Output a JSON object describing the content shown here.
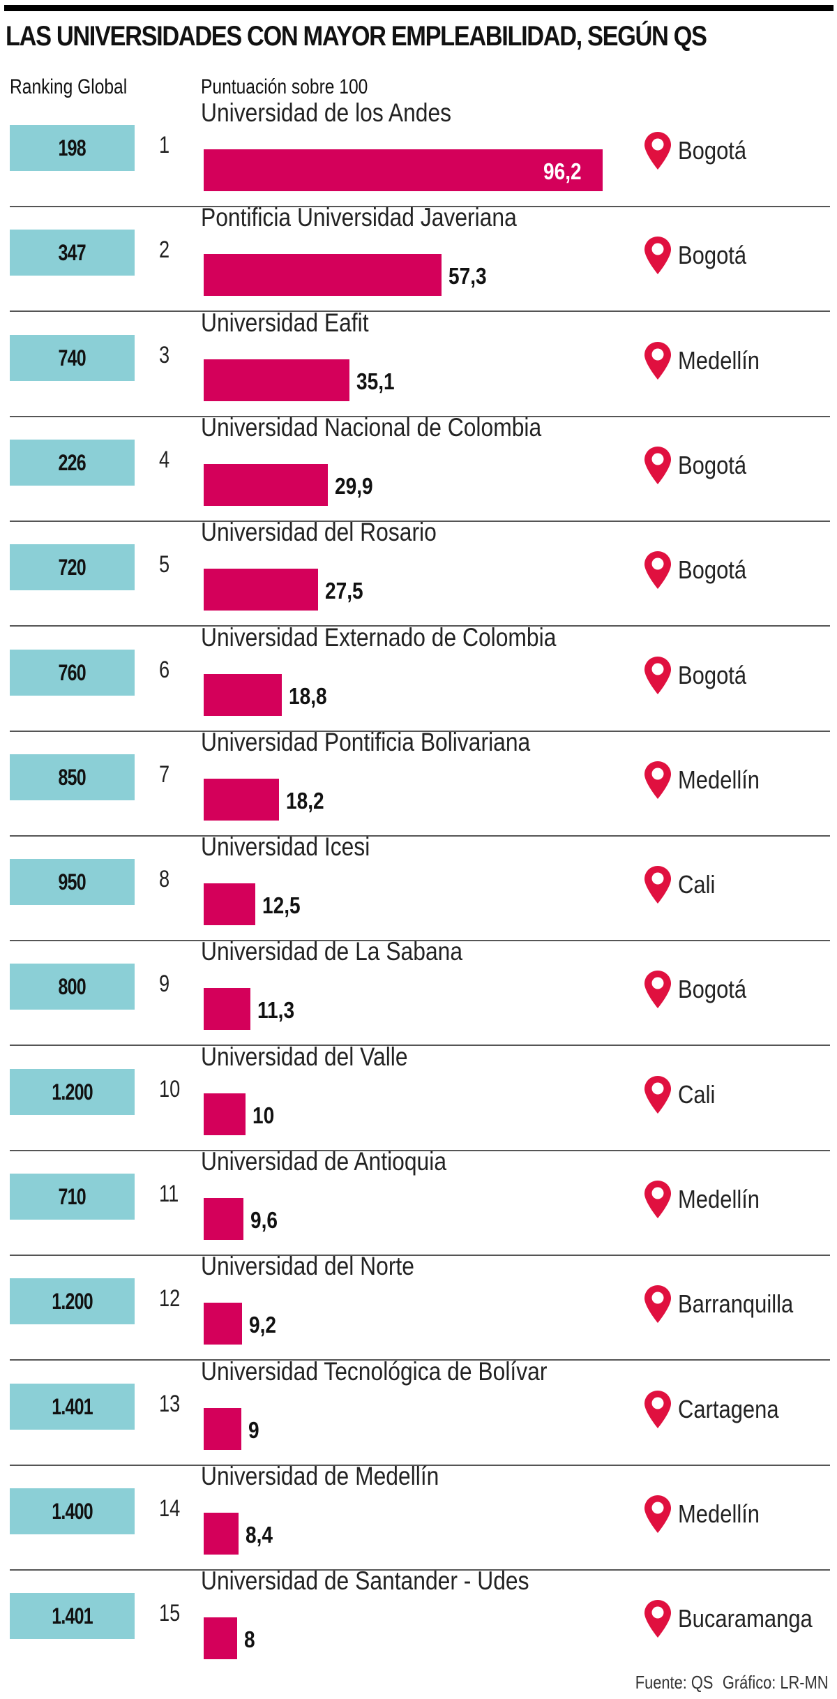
{
  "title": "LAS UNIVERSIDADES CON MAYOR EMPLEABILIDAD, SEGÚN QS",
  "headers": {
    "ranking": "Ranking Global",
    "score": "Puntuación sobre 100"
  },
  "colors": {
    "ranking_box": "#8bcfd6",
    "bar": "#d4005a",
    "pin": "#e0103f",
    "topbar": "#000000"
  },
  "icons": {
    "location": "map-pin-icon"
  },
  "rows": [
    {
      "global": "198",
      "pos": "1",
      "name": "Universidad de los Andes",
      "score": "96,2",
      "value": 96.2,
      "city": "Bogotá"
    },
    {
      "global": "347",
      "pos": "2",
      "name": "Pontificia Universidad Javeriana",
      "score": "57,3",
      "value": 57.3,
      "city": "Bogotá"
    },
    {
      "global": "740",
      "pos": "3",
      "name": "Universidad Eafit",
      "score": "35,1",
      "value": 35.1,
      "city": "Medellín"
    },
    {
      "global": "226",
      "pos": "4",
      "name": "Universidad Nacional de Colombia",
      "score": "29,9",
      "value": 29.9,
      "city": "Bogotá"
    },
    {
      "global": "720",
      "pos": "5",
      "name": "Universidad del Rosario",
      "score": "27,5",
      "value": 27.5,
      "city": "Bogotá"
    },
    {
      "global": "760",
      "pos": "6",
      "name": "Universidad Externado de Colombia",
      "score": "18,8",
      "value": 18.8,
      "city": "Bogotá"
    },
    {
      "global": "850",
      "pos": "7",
      "name": "Universidad Pontificia Bolivariana",
      "score": "18,2",
      "value": 18.2,
      "city": "Medellín"
    },
    {
      "global": "950",
      "pos": "8",
      "name": "Universidad Icesi",
      "score": "12,5",
      "value": 12.5,
      "city": "Cali"
    },
    {
      "global": "800",
      "pos": "9",
      "name": "Universidad de La Sabana",
      "score": "11,3",
      "value": 11.3,
      "city": "Bogotá"
    },
    {
      "global": "1.200",
      "pos": "10",
      "name": "Universidad del Valle",
      "score": "10",
      "value": 10,
      "city": "Cali"
    },
    {
      "global": "710",
      "pos": "11",
      "name": "Universidad de Antioquia",
      "score": "9,6",
      "value": 9.6,
      "city": "Medellín"
    },
    {
      "global": "1.200",
      "pos": "12",
      "name": "Universidad del Norte",
      "score": "9,2",
      "value": 9.2,
      "city": "Barranquilla"
    },
    {
      "global": "1.401",
      "pos": "13",
      "name": "Universidad Tecnológica de Bolívar",
      "score": "9",
      "value": 9,
      "city": "Cartagena"
    },
    {
      "global": "1.400",
      "pos": "14",
      "name": "Universidad de Medellín",
      "score": "8,4",
      "value": 8.4,
      "city": "Medellín"
    },
    {
      "global": "1.401",
      "pos": "15",
      "name": "Universidad de Santander - Udes",
      "score": "8",
      "value": 8,
      "city": "Bucaramanga"
    }
  ],
  "footer": {
    "source": "Fuente: QS",
    "credit": "Gráfico: LR-MN"
  },
  "chart_data": {
    "type": "bar",
    "orientation": "horizontal",
    "title": "LAS UNIVERSIDADES CON MAYOR EMPLEABILIDAD, SEGÚN QS",
    "xlabel": "Puntuación sobre 100",
    "ylabel": "",
    "xlim": [
      0,
      100
    ],
    "grid": false,
    "categories": [
      "Universidad de los Andes",
      "Pontificia Universidad Javeriana",
      "Universidad Eafit",
      "Universidad Nacional de Colombia",
      "Universidad del Rosario",
      "Universidad Externado de Colombia",
      "Universidad Pontificia Bolivariana",
      "Universidad Icesi",
      "Universidad de La Sabana",
      "Universidad del Valle",
      "Universidad de Antioquia",
      "Universidad del Norte",
      "Universidad Tecnológica de Bolívar",
      "Universidad de Medellín",
      "Universidad de Santander - Udes"
    ],
    "values": [
      96.2,
      57.3,
      35.1,
      29.9,
      27.5,
      18.8,
      18.2,
      12.5,
      11.3,
      10,
      9.6,
      9.2,
      9,
      8.4,
      8
    ],
    "extra_columns": {
      "Ranking Global": [
        "198",
        "347",
        "740",
        "226",
        "720",
        "760",
        "850",
        "950",
        "800",
        "1.200",
        "710",
        "1.200",
        "1.401",
        "1.400",
        "1.401"
      ],
      "Ciudad": [
        "Bogotá",
        "Bogotá",
        "Medellín",
        "Bogotá",
        "Bogotá",
        "Bogotá",
        "Medellín",
        "Cali",
        "Bogotá",
        "Cali",
        "Medellín",
        "Barranquilla",
        "Cartagena",
        "Medellín",
        "Bucaramanga"
      ]
    },
    "annotations": [
      "Fuente: QS",
      "Gráfico: LR-MN"
    ]
  }
}
